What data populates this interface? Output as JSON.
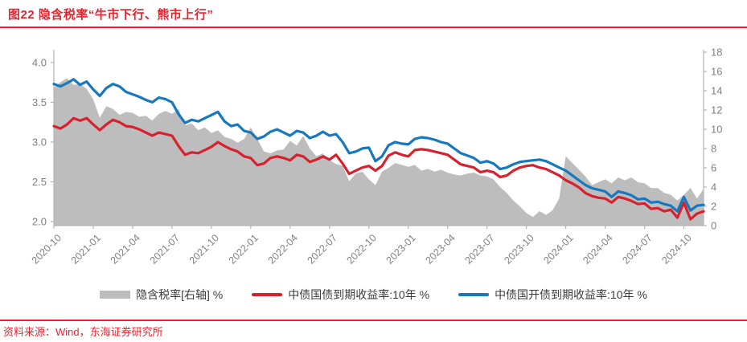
{
  "title": "图22  隐含税率“牛市下行、熊市上行”",
  "source": "资料来源：Wind，东海证券研究所",
  "colors": {
    "accent_red": "#E8232E",
    "line_red": "#D7212E",
    "line_blue": "#1878BE",
    "area_gray": "#BDBDBD",
    "axis_gray": "#B5B5B5",
    "label_gray": "#808080"
  },
  "legend": [
    {
      "label": "隐含税率[右轴] %",
      "swatch": "area",
      "color": "#BDBDBD"
    },
    {
      "label": "中债国债到期收益率:10年 %",
      "swatch": "line",
      "color": "#D7212E"
    },
    {
      "label": "中债国开债到期收益率:10年 %",
      "swatch": "line",
      "color": "#1878BE"
    }
  ],
  "chart_data": {
    "type": "line",
    "title": "隐含税率“牛市下行、熊市上行”",
    "x_start": "2020-10",
    "x_end": "2024-11",
    "x_step_months": 0.5,
    "x_tick_labels": [
      "2020-10",
      "2021-01",
      "2021-04",
      "2021-07",
      "2021-10",
      "2022-01",
      "2022-04",
      "2022-07",
      "2022-10",
      "2023-01",
      "2023-04",
      "2023-07",
      "2023-10",
      "2024-01",
      "2024-04",
      "2024-07",
      "2024-10"
    ],
    "x_tick_month_offsets": [
      0,
      3,
      6,
      9,
      12,
      15,
      18,
      21,
      24,
      27,
      30,
      33,
      36,
      39,
      42,
      45,
      48
    ],
    "left_axis": {
      "ticks": [
        2.0,
        2.5,
        3.0,
        3.5,
        4.0
      ],
      "tick_labels": [
        "2.0",
        "2.5",
        "3.0",
        "3.5",
        "4.0"
      ],
      "range": [
        1.95,
        4.16
      ]
    },
    "right_axis": {
      "ticks": [
        0,
        2,
        4,
        6,
        8,
        10,
        12,
        14,
        16,
        18
      ],
      "tick_labels": [
        "0",
        "2",
        "4",
        "6",
        "8",
        "10",
        "12",
        "14",
        "16",
        "18"
      ],
      "range": [
        0,
        18.25
      ]
    },
    "grid": false,
    "legend_position": "bottom",
    "series": [
      {
        "name": "隐含税率[右轴] %",
        "type": "area",
        "axis": "right",
        "color": "#BDBDBD",
        "values": [
          14.3,
          14.9,
          15.3,
          14.6,
          14.7,
          14.2,
          13.1,
          11.2,
          12.4,
          12.1,
          11.5,
          11.8,
          11.7,
          11.3,
          11.4,
          10.9,
          11.6,
          11.9,
          11.6,
          12.1,
          10.4,
          10.6,
          9.9,
          10.2,
          9.6,
          9.9,
          9.2,
          9.0,
          8.6,
          9.0,
          10.2,
          9.0,
          7.7,
          7.5,
          7.8,
          7.9,
          8.8,
          8.3,
          9.3,
          8.0,
          7.2,
          7.5,
          6.8,
          6.4,
          6.2,
          4.6,
          5.4,
          5.6,
          4.8,
          4.2,
          5.6,
          6.0,
          6.5,
          6.3,
          6.1,
          6.3,
          5.7,
          5.9,
          5.6,
          5.8,
          5.5,
          5.3,
          5.2,
          5.4,
          5.5,
          5.2,
          5.1,
          4.8,
          4.0,
          3.4,
          2.6,
          2.0,
          1.3,
          0.9,
          1.5,
          1.1,
          1.6,
          2.8,
          7.2,
          6.5,
          5.8,
          5.1,
          4.2,
          4.5,
          4.8,
          4.4,
          5.0,
          4.7,
          5.0,
          4.5,
          4.4,
          3.9,
          3.9,
          3.4,
          3.2,
          2.6,
          3.2,
          3.9,
          2.8,
          3.8
        ]
      },
      {
        "name": "中债国债到期收益率:10年 %",
        "type": "line",
        "axis": "left",
        "color": "#D7212E",
        "values": [
          3.2,
          3.17,
          3.22,
          3.3,
          3.27,
          3.3,
          3.22,
          3.15,
          3.22,
          3.28,
          3.25,
          3.2,
          3.19,
          3.16,
          3.12,
          3.08,
          3.12,
          3.1,
          3.08,
          2.95,
          2.84,
          2.87,
          2.86,
          2.9,
          2.94,
          3.0,
          2.95,
          2.91,
          2.88,
          2.82,
          2.8,
          2.71,
          2.73,
          2.8,
          2.82,
          2.8,
          2.77,
          2.84,
          2.82,
          2.75,
          2.78,
          2.82,
          2.78,
          2.84,
          2.73,
          2.6,
          2.64,
          2.68,
          2.7,
          2.64,
          2.7,
          2.83,
          2.87,
          2.84,
          2.82,
          2.9,
          2.91,
          2.9,
          2.88,
          2.86,
          2.84,
          2.78,
          2.72,
          2.7,
          2.68,
          2.62,
          2.64,
          2.62,
          2.56,
          2.58,
          2.64,
          2.68,
          2.7,
          2.71,
          2.68,
          2.66,
          2.62,
          2.58,
          2.52,
          2.48,
          2.43,
          2.36,
          2.32,
          2.3,
          2.29,
          2.24,
          2.31,
          2.29,
          2.26,
          2.22,
          2.23,
          2.16,
          2.17,
          2.13,
          2.15,
          2.05,
          2.24,
          2.03,
          2.1,
          2.13
        ]
      },
      {
        "name": "中债国开债到期收益率:10年 %",
        "type": "line",
        "axis": "left",
        "color": "#1878BE",
        "values": [
          3.73,
          3.7,
          3.74,
          3.79,
          3.72,
          3.76,
          3.66,
          3.58,
          3.68,
          3.73,
          3.7,
          3.63,
          3.6,
          3.57,
          3.53,
          3.5,
          3.56,
          3.54,
          3.5,
          3.35,
          3.24,
          3.28,
          3.26,
          3.3,
          3.34,
          3.38,
          3.26,
          3.2,
          3.22,
          3.14,
          3.12,
          3.04,
          3.07,
          3.13,
          3.16,
          3.12,
          3.08,
          3.14,
          3.12,
          3.05,
          3.08,
          3.13,
          3.08,
          3.1,
          3.0,
          2.86,
          2.88,
          2.92,
          2.93,
          2.76,
          2.82,
          2.96,
          3.0,
          2.98,
          2.97,
          3.04,
          3.06,
          3.05,
          3.03,
          3.0,
          2.98,
          2.92,
          2.86,
          2.83,
          2.8,
          2.74,
          2.76,
          2.73,
          2.66,
          2.68,
          2.72,
          2.75,
          2.76,
          2.77,
          2.78,
          2.76,
          2.72,
          2.68,
          2.64,
          2.58,
          2.52,
          2.46,
          2.42,
          2.4,
          2.38,
          2.31,
          2.38,
          2.36,
          2.33,
          2.28,
          2.29,
          2.24,
          2.25,
          2.22,
          2.2,
          2.13,
          2.31,
          2.14,
          2.2,
          2.21
        ]
      }
    ]
  }
}
